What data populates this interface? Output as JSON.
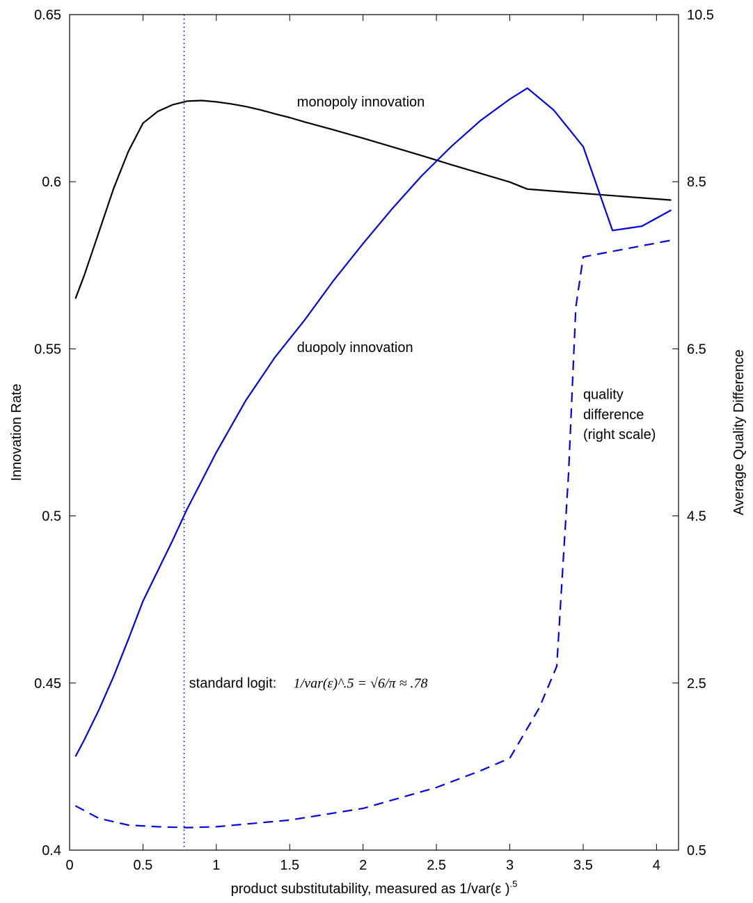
{
  "chart_data": {
    "type": "line",
    "xlabel": "product substitutability, measured as 1/var(ε )",
    "xlabel_sup": ".5",
    "ylabel_left": "Innovation Rate",
    "ylabel_right": "Average Quality Difference",
    "xlim": [
      0,
      4.15
    ],
    "ylim_left": [
      0.4,
      0.65
    ],
    "ylim_right": [
      0.5,
      10.5
    ],
    "x_ticks": [
      0,
      0.5,
      1,
      1.5,
      2,
      2.5,
      3,
      3.5,
      4
    ],
    "x_tick_labels": [
      "0",
      "0.5",
      "1",
      "1.5",
      "2",
      "2.5",
      "3",
      "3.5",
      "4"
    ],
    "y_left_ticks": [
      0.4,
      0.45,
      0.5,
      0.55,
      0.6,
      0.65
    ],
    "y_left_tick_labels": [
      "0.4",
      "0.45",
      "0.5",
      "0.55",
      "0.6",
      "0.65"
    ],
    "y_right_ticks": [
      0.5,
      2.5,
      4.5,
      6.5,
      8.5,
      10.5
    ],
    "y_right_tick_labels": [
      "0.5",
      "2.5",
      "4.5",
      "6.5",
      "8.5",
      "10.5"
    ],
    "grid": false,
    "legend": "none",
    "series": [
      {
        "axis": "left",
        "color": "#000000",
        "style": "solid",
        "x": [
          0.04,
          0.1,
          0.2,
          0.3,
          0.4,
          0.5,
          0.6,
          0.7,
          0.8,
          0.9,
          1.0,
          1.1,
          1.2,
          1.3,
          1.4,
          1.5,
          1.6,
          1.8,
          2.0,
          2.2,
          2.4,
          2.6,
          2.8,
          3.0,
          3.12,
          3.5,
          4.1
        ],
        "y": [
          0.565,
          0.572,
          0.585,
          0.598,
          0.609,
          0.6175,
          0.621,
          0.623,
          0.6241,
          0.6243,
          0.6239,
          0.6233,
          0.6225,
          0.6215,
          0.6203,
          0.6192,
          0.6179,
          0.6155,
          0.613,
          0.6104,
          0.6078,
          0.6051,
          0.6025,
          0.5999,
          0.5978,
          0.5965,
          0.5945
        ]
      },
      {
        "axis": "left",
        "color": "#0000e6",
        "style": "solid",
        "x": [
          0.04,
          0.1,
          0.2,
          0.3,
          0.4,
          0.5,
          0.6,
          0.7,
          0.8,
          0.9,
          1.0,
          1.2,
          1.4,
          1.6,
          1.8,
          2.0,
          2.2,
          2.4,
          2.6,
          2.8,
          3.0,
          3.12,
          3.3,
          3.5,
          3.7,
          3.9,
          4.1
        ],
        "y": [
          0.428,
          0.433,
          0.442,
          0.452,
          0.463,
          0.4745,
          0.4835,
          0.4925,
          0.502,
          0.5105,
          0.519,
          0.5345,
          0.5475,
          0.5585,
          0.5705,
          0.5815,
          0.592,
          0.6018,
          0.6105,
          0.6183,
          0.6247,
          0.628,
          0.6214,
          0.6105,
          0.5854,
          0.5867,
          0.5915
        ]
      },
      {
        "axis": "right",
        "color": "#0000e6",
        "style": "dashed",
        "x": [
          0.04,
          0.2,
          0.4,
          0.6,
          0.8,
          1.0,
          1.5,
          2.0,
          2.5,
          2.8,
          3.0,
          3.1,
          3.2,
          3.32,
          3.4,
          3.45,
          3.5,
          4.1
        ],
        "y": [
          1.03,
          0.88,
          0.8,
          0.78,
          0.77,
          0.78,
          0.86,
          1.0,
          1.25,
          1.45,
          1.6,
          1.9,
          2.2,
          2.7,
          5.0,
          7.0,
          7.6,
          7.8
        ]
      }
    ],
    "reference_line": {
      "x": 0.78,
      "color": "#0000e6",
      "style": "dotted"
    },
    "annotations": [
      {
        "text": "monopoly innovation",
        "x": 1.55,
        "y_left": 0.6225
      },
      {
        "text": "duopoly innovation",
        "x": 1.55,
        "y_left": 0.549
      },
      {
        "text": "quality",
        "x": 3.5,
        "y_left": 0.535
      },
      {
        "text": "difference",
        "x": 3.5,
        "y_left": 0.529
      },
      {
        "text": "(right scale)",
        "x": 3.5,
        "y_left": 0.523
      },
      {
        "text": "standard logit:",
        "x": 0.8,
        "y_left": 0.4486
      }
    ],
    "formula": "1/var(ε)^.5 = √6/π ≈ .78"
  }
}
